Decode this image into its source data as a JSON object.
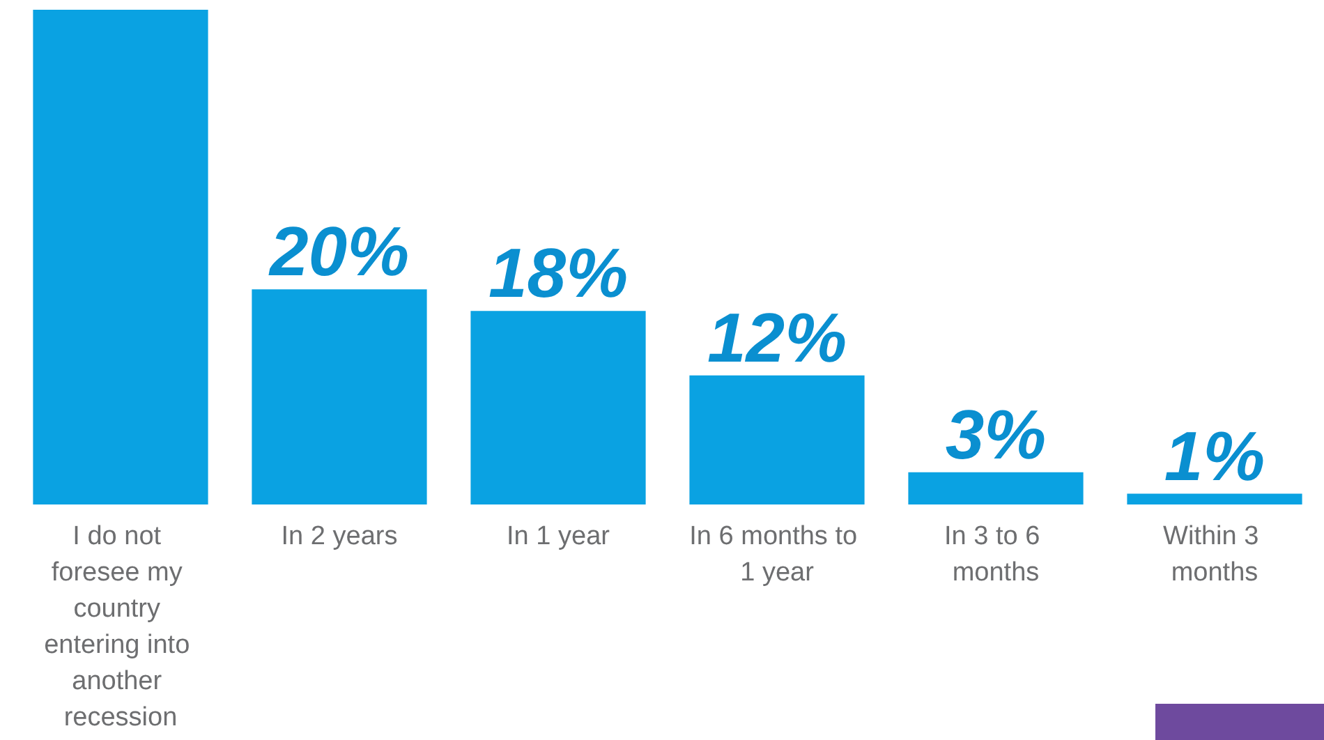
{
  "chart_data": {
    "type": "bar",
    "categories": [
      "I do not foresee my country entering into another recession",
      "In 2 years",
      "In 1 year",
      "In 6 months to 1 year",
      "In 3 to 6 months",
      "Within 3 months"
    ],
    "values": [
      46,
      20,
      18,
      12,
      3,
      1
    ],
    "value_labels": [
      null,
      "20%",
      "18%",
      "12%",
      "3%",
      "1%"
    ],
    "color": "#0aa2e2"
  }
}
